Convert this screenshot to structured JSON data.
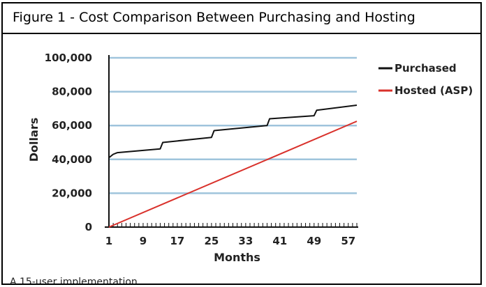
{
  "caption": "Figure 1 - Cost Comparison Between Purchasing and Hosting",
  "note": "A 15-user implementation",
  "colors": {
    "purchased": "#111111",
    "hosted": "#d9312b",
    "grid": "#9fc4dc"
  },
  "chart_data": {
    "type": "line",
    "title": "",
    "xlabel": "Months",
    "ylabel": "Dollars",
    "xlim": [
      1,
      59
    ],
    "ylim": [
      0,
      100000
    ],
    "x_ticks": [
      1,
      9,
      17,
      25,
      33,
      41,
      49,
      57
    ],
    "y_ticks": [
      0,
      20000,
      40000,
      60000,
      80000,
      100000
    ],
    "y_tick_labels": [
      "0",
      "20,000",
      "40,000",
      "60,000",
      "80,000",
      "100,000"
    ],
    "grid": true,
    "legend": "top-right",
    "series": [
      {
        "name": "Purchased",
        "x": [
          1,
          2,
          3,
          13,
          13.6,
          25,
          25.6,
          38,
          38.6,
          49,
          49.6,
          59
        ],
        "y": [
          41000,
          43000,
          44000,
          46200,
          50000,
          53000,
          57000,
          60000,
          64000,
          65800,
          69000,
          72000
        ]
      },
      {
        "name": "Hosted (ASP)",
        "x": [
          1,
          59
        ],
        "y": [
          0,
          62500
        ]
      }
    ]
  }
}
